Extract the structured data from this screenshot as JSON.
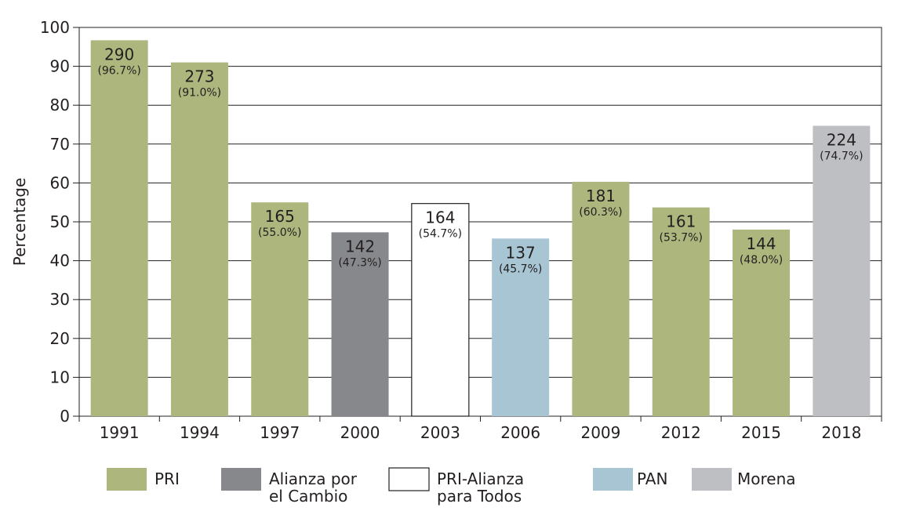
{
  "chart_data": {
    "type": "bar",
    "title": "",
    "xlabel": "",
    "ylabel": "Percentage",
    "ylim": [
      0,
      100
    ],
    "yticks": [
      "0",
      "10",
      "20",
      "30",
      "40",
      "50",
      "60",
      "70",
      "80",
      "90",
      "100"
    ],
    "categories": [
      "1991",
      "1994",
      "1997",
      "2000",
      "2003",
      "2006",
      "2009",
      "2012",
      "2015",
      "2018"
    ],
    "values": [
      96.7,
      91.0,
      55.0,
      47.3,
      54.7,
      45.7,
      60.3,
      53.7,
      48.0,
      74.7
    ],
    "counts": [
      "290",
      "273",
      "165",
      "142",
      "164",
      "137",
      "181",
      "161",
      "144",
      "224"
    ],
    "percent_labels": [
      "(96.7%)",
      "(91.0%)",
      "(55.0%)",
      "(47.3%)",
      "(54.7%)",
      "(45.7%)",
      "(60.3%)",
      "(53.7%)",
      "(48.0%)",
      "(74.7%)"
    ],
    "parties": [
      "PRI",
      "PRI",
      "PRI",
      "Alianza por el Cambio",
      "PRI-Alianza para Todos",
      "PAN",
      "PRI",
      "PRI",
      "PRI",
      "Morena"
    ],
    "legend": [
      {
        "name": "PRI",
        "lines": [
          "PRI"
        ],
        "color": "#adb67d"
      },
      {
        "name": "Alianza por el Cambio",
        "lines": [
          "Alianza por",
          "el Cambio"
        ],
        "color": "#87888c"
      },
      {
        "name": "PRI-Alianza para Todos",
        "lines": [
          "PRI-Alianza",
          "para Todos"
        ],
        "color": "#ffffff"
      },
      {
        "name": "PAN",
        "lines": [
          "PAN"
        ],
        "color": "#a7c5d3"
      },
      {
        "name": "Morena",
        "lines": [
          "Morena"
        ],
        "color": "#bebfc3"
      }
    ],
    "grid": true,
    "legend_position": "bottom"
  }
}
